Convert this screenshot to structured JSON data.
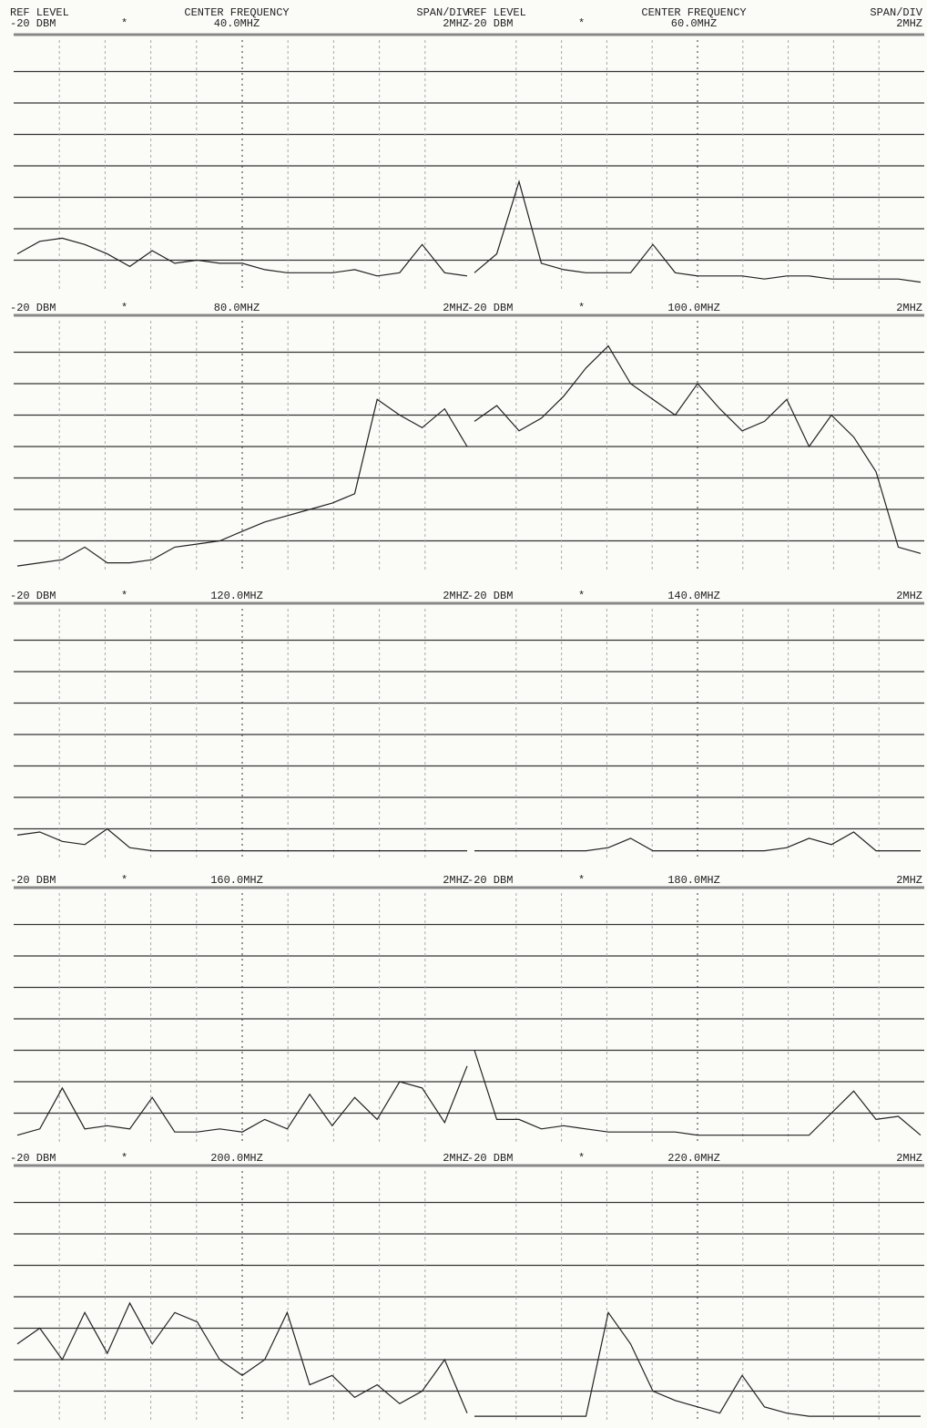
{
  "header_labels": {
    "ref_level": "REF LEVEL",
    "center_frequency": "CENTER FREQUENCY",
    "span_div": "SPAN/DIV"
  },
  "grid_divisions": 8,
  "panels": [
    {
      "ref_level": "-20 DBM",
      "marker": "*",
      "center": "40.0MHZ",
      "span": "2MHZ",
      "trace": [
        1.2,
        1.6,
        1.7,
        1.5,
        1.2,
        0.8,
        1.3,
        0.9,
        1.0,
        0.9,
        0.9,
        0.7,
        0.6,
        0.6,
        0.6,
        0.7,
        0.5,
        0.6,
        1.5,
        0.6,
        0.5
      ]
    },
    {
      "ref_level": "-20 DBM",
      "marker": "*",
      "center": "60.0MHZ",
      "span": "2MHZ",
      "trace": [
        0.6,
        1.2,
        3.5,
        0.9,
        0.7,
        0.6,
        0.6,
        0.6,
        1.5,
        0.6,
        0.5,
        0.5,
        0.5,
        0.4,
        0.5,
        0.5,
        0.4,
        0.4,
        0.4,
        0.4,
        0.3
      ]
    },
    {
      "ref_level": "-20 DBM",
      "marker": "*",
      "center": "80.0MHZ",
      "span": "2MHZ",
      "trace": [
        0.2,
        0.3,
        0.4,
        0.8,
        0.3,
        0.3,
        0.4,
        0.8,
        0.9,
        1.0,
        1.3,
        1.6,
        1.8,
        2.0,
        2.2,
        2.5,
        5.5,
        5.0,
        4.6,
        5.2,
        4.0
      ]
    },
    {
      "ref_level": "-20 DBM",
      "marker": "*",
      "center": "100.0MHZ",
      "span": "2MHZ",
      "trace": [
        4.8,
        5.3,
        4.5,
        4.9,
        5.6,
        6.5,
        7.2,
        6.0,
        5.5,
        5.0,
        6.0,
        5.2,
        4.5,
        4.8,
        5.5,
        4.0,
        5.0,
        4.3,
        3.2,
        0.8,
        0.6
      ]
    },
    {
      "ref_level": "-20 DBM",
      "marker": "*",
      "center": "120.0MHZ",
      "span": "2MHZ",
      "trace": [
        0.8,
        0.9,
        0.6,
        0.5,
        1.0,
        0.4,
        0.3,
        0.3,
        0.3,
        0.3,
        0.3,
        0.3,
        0.3,
        0.3,
        0.3,
        0.3,
        0.3,
        0.3,
        0.3,
        0.3,
        0.3
      ]
    },
    {
      "ref_level": "-20 DBM",
      "marker": "*",
      "center": "140.0MHZ",
      "span": "2MHZ",
      "trace": [
        0.3,
        0.3,
        0.3,
        0.3,
        0.3,
        0.3,
        0.4,
        0.7,
        0.3,
        0.3,
        0.3,
        0.3,
        0.3,
        0.3,
        0.4,
        0.7,
        0.5,
        0.9,
        0.3,
        0.3,
        0.3
      ]
    },
    {
      "ref_level": "-20 DBM",
      "marker": "*",
      "center": "160.0MHZ",
      "span": "2MHZ",
      "trace": [
        0.3,
        0.5,
        1.8,
        0.5,
        0.6,
        0.5,
        1.5,
        0.4,
        0.4,
        0.5,
        0.4,
        0.8,
        0.5,
        1.6,
        0.6,
        1.5,
        0.8,
        2.0,
        1.8,
        0.7,
        2.5
      ]
    },
    {
      "ref_level": "-20 DBM",
      "marker": "*",
      "center": "180.0MHZ",
      "span": "2MHZ",
      "trace": [
        3.0,
        0.8,
        0.8,
        0.5,
        0.6,
        0.5,
        0.4,
        0.4,
        0.4,
        0.4,
        0.3,
        0.3,
        0.3,
        0.3,
        0.3,
        0.3,
        1.0,
        1.7,
        0.8,
        0.9,
        0.3
      ]
    },
    {
      "ref_level": "-20 DBM",
      "marker": "*",
      "center": "200.0MHZ",
      "span": "2MHZ",
      "trace": [
        2.5,
        3.0,
        2.0,
        3.5,
        2.2,
        3.8,
        2.5,
        3.5,
        3.2,
        2.0,
        1.5,
        2.0,
        3.5,
        1.2,
        1.5,
        0.8,
        1.2,
        0.6,
        1.0,
        2.0,
        0.3
      ]
    },
    {
      "ref_level": "-20 DBM",
      "marker": "*",
      "center": "220.0MHZ",
      "span": "2MHZ",
      "trace": [
        0.2,
        0.2,
        0.2,
        0.2,
        0.2,
        0.2,
        3.5,
        2.5,
        1.0,
        0.7,
        0.5,
        0.3,
        1.5,
        0.5,
        0.3,
        0.2,
        0.2,
        0.2,
        0.2,
        0.2,
        0.2
      ]
    }
  ]
}
